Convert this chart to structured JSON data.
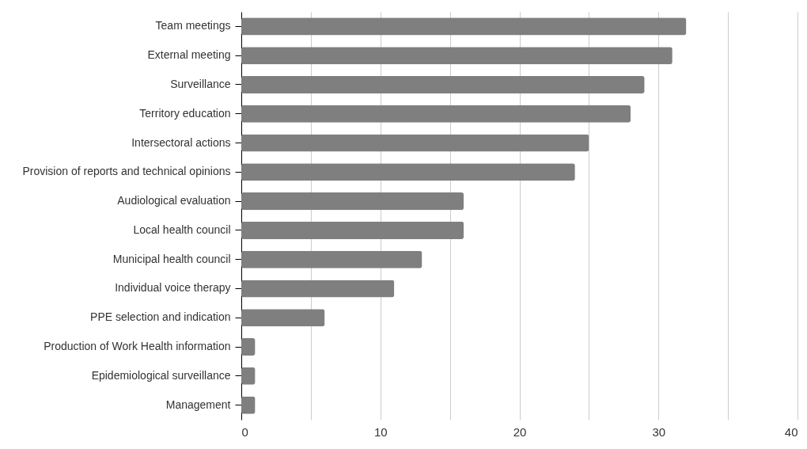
{
  "chart_data": {
    "type": "bar",
    "orientation": "horizontal",
    "categories": [
      "Team meetings",
      "External meeting",
      "Surveillance",
      "Territory education",
      "Intersectoral actions",
      "Provision of reports and technical opinions",
      "Audiological evaluation",
      "Local health council",
      "Municipal health council",
      "Individual voice therapy",
      "PPE selection and indication",
      "Production of Work Health information",
      "Epidemiological surveillance",
      "Management"
    ],
    "values": [
      32,
      31,
      29,
      28,
      25,
      24,
      16,
      16,
      13,
      11,
      6,
      1,
      1,
      1
    ],
    "color": "#7f7f7f",
    "xlim": [
      0,
      40
    ],
    "xticks": [
      0,
      {
        "value": 5,
        "label": null
      },
      10,
      {
        "value": 15,
        "label": null
      },
      20,
      {
        "value": 25,
        "label": null
      },
      30,
      {
        "value": 35,
        "label": null
      },
      40
    ],
    "grid": "x"
  }
}
